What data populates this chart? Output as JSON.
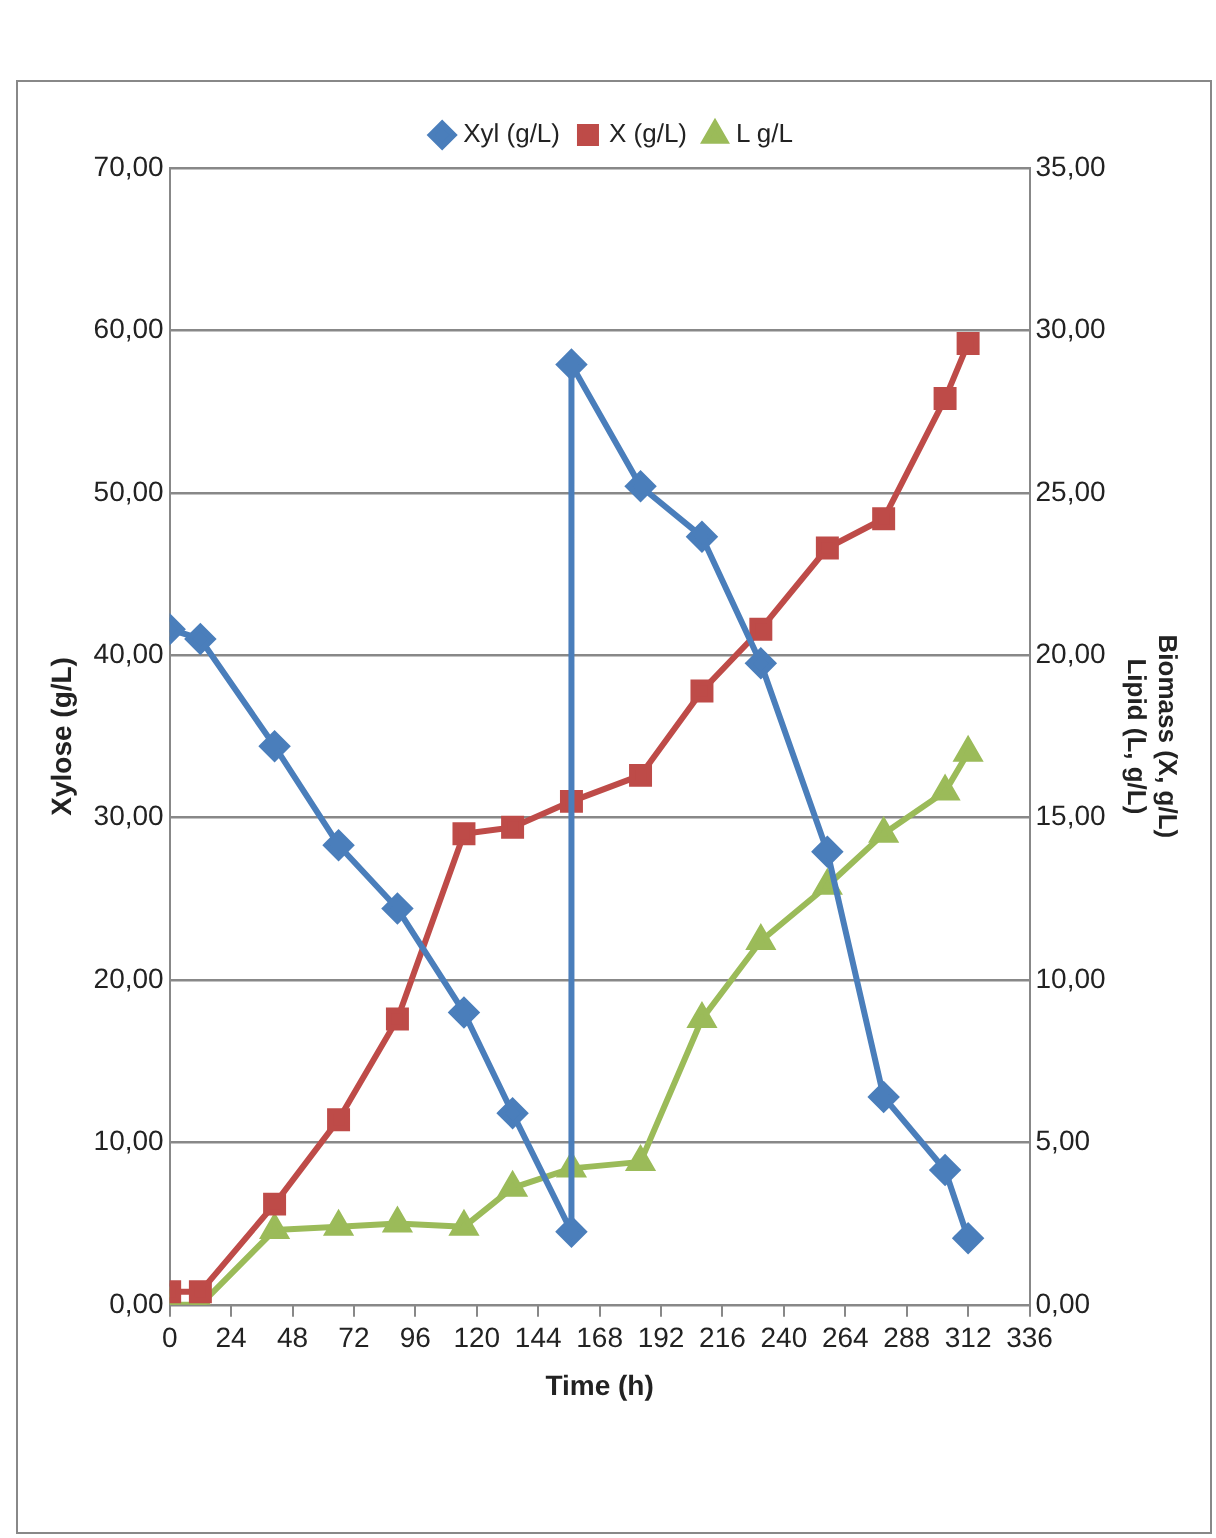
{
  "chart_data": {
    "type": "line",
    "xlabel": "Time (h)",
    "ylabel": "Xylose (g/L)",
    "y2label": "Biomass (X, g/L)\nLipid (L, g/L)",
    "xlim": [
      0,
      336
    ],
    "xticks": [
      0,
      24,
      48,
      72,
      96,
      120,
      144,
      168,
      192,
      216,
      240,
      264,
      288,
      312,
      336
    ],
    "ylim": [
      0,
      70
    ],
    "yticks": [
      {
        "value": 0,
        "label": "0,00"
      },
      {
        "value": 10,
        "label": "10,00"
      },
      {
        "value": 20,
        "label": "20,00"
      },
      {
        "value": 30,
        "label": "30,00"
      },
      {
        "value": 40,
        "label": "40,00"
      },
      {
        "value": 50,
        "label": "50,00"
      },
      {
        "value": 60,
        "label": "60,00"
      },
      {
        "value": 70,
        "label": "70,00"
      }
    ],
    "y2lim": [
      0,
      35
    ],
    "y2ticks": [
      {
        "value": 0,
        "label": "0,00"
      },
      {
        "value": 5,
        "label": "5,00"
      },
      {
        "value": 10,
        "label": "10,00"
      },
      {
        "value": 15,
        "label": "15,00"
      },
      {
        "value": 20,
        "label": "20,00"
      },
      {
        "value": 25,
        "label": "25,00"
      },
      {
        "value": 30,
        "label": "30,00"
      },
      {
        "value": 35,
        "label": "35,00"
      }
    ],
    "grid": "y",
    "legend": "top",
    "line_style": "solid",
    "series": [
      {
        "name": "Xyl (g/L)",
        "color": "#4a7ebb",
        "marker": "diamond",
        "x": [
          0,
          12,
          41,
          66,
          89,
          115,
          134,
          157,
          157,
          184,
          208,
          231,
          257,
          279,
          303,
          312
        ],
        "values": [
          41.6,
          41.0,
          34.4,
          28.3,
          24.4,
          18.0,
          11.8,
          4.5,
          57.9,
          50.4,
          47.3,
          39.5,
          27.9,
          12.8,
          8.3,
          4.1
        ]
      },
      {
        "name": "X (g/L)",
        "color": "#be4b48",
        "marker": "square",
        "axis": "y2",
        "x": [
          0,
          12,
          41,
          66,
          89,
          115,
          134,
          157,
          184,
          208,
          231,
          257,
          279,
          303,
          312
        ],
        "values": [
          0.4,
          0.4,
          3.1,
          5.7,
          8.8,
          14.5,
          14.7,
          15.5,
          16.3,
          18.9,
          20.8,
          23.3,
          24.2,
          27.9,
          29.6
        ]
      },
      {
        "name": "L g/L",
        "color": "#9bbb59",
        "marker": "triangle",
        "axis": "y2",
        "x": [
          0,
          12,
          41,
          66,
          89,
          115,
          134,
          157,
          184,
          208,
          231,
          257,
          279,
          303,
          312
        ],
        "values": [
          0,
          0,
          2.3,
          2.4,
          2.5,
          2.4,
          3.6,
          4.2,
          4.4,
          8.8,
          11.2,
          12.9,
          14.5,
          15.8,
          17.0
        ]
      }
    ]
  }
}
